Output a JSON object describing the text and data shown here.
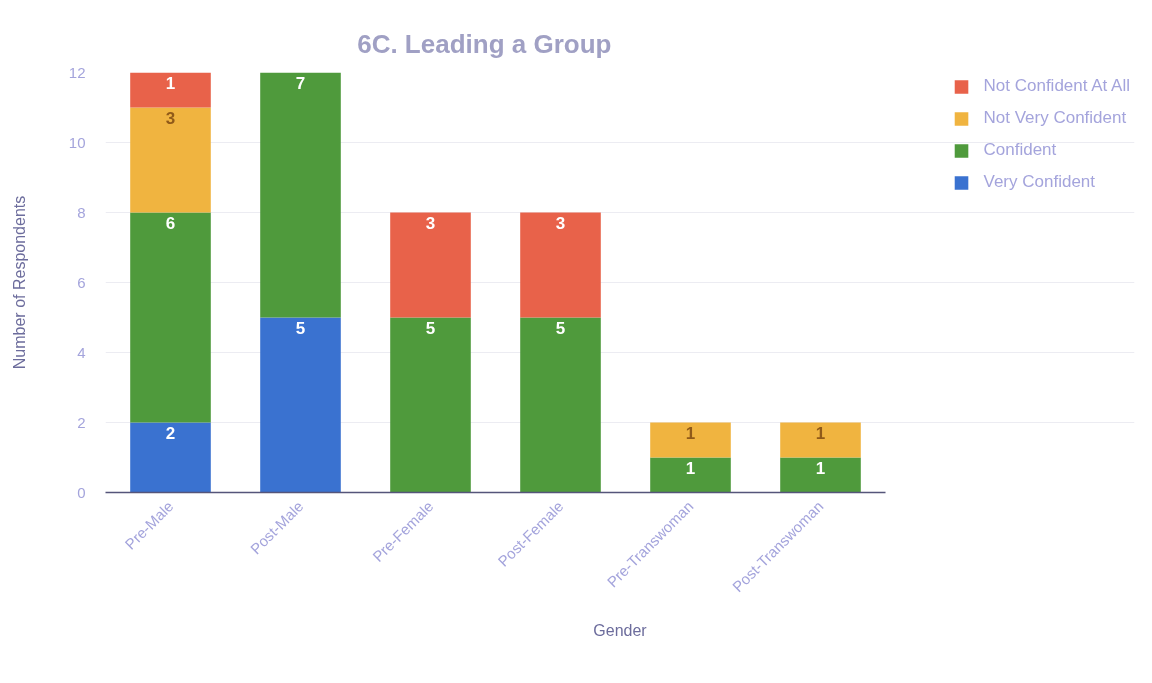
{
  "chart_data": {
    "type": "bar",
    "title": "6C. Leading a Group",
    "xlabel": "Gender",
    "ylabel": "Number of Respondents",
    "categories": [
      "Pre-Male",
      "Post-Male",
      "Pre-Female",
      "Post-Female",
      "Pre-Transwoman",
      "Post-Transwoman"
    ],
    "series": [
      {
        "name": "Very Confident",
        "color": "#3a72d0",
        "values": [
          2,
          5,
          null,
          null,
          null,
          null
        ]
      },
      {
        "name": "Confident",
        "color": "#4f9a3c",
        "values": [
          6,
          7,
          5,
          5,
          1,
          1
        ]
      },
      {
        "name": "Not Very Confident",
        "color": "#f0b440",
        "values": [
          3,
          null,
          null,
          null,
          1,
          1
        ]
      },
      {
        "name": "Not Confident At All",
        "color": "#e8624a",
        "values": [
          1,
          null,
          3,
          3,
          null,
          null
        ]
      }
    ],
    "stacked": true,
    "data_labels": true,
    "ylim": [
      0,
      12
    ],
    "yticks": [
      0,
      2,
      4,
      6,
      8,
      10,
      12
    ],
    "grid": "y",
    "legend": "top right"
  }
}
